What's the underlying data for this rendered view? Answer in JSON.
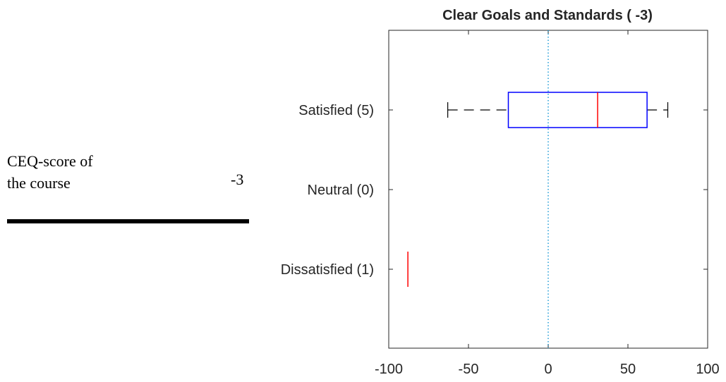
{
  "table": {
    "label_line1": "CEQ-score of",
    "label_line2": "the course",
    "value": "-3"
  },
  "chart_data": {
    "type": "boxplot",
    "title": "Clear Goals and Standards ( -3)",
    "xlim": [
      -100,
      100
    ],
    "xticks": [
      -100,
      -50,
      0,
      50,
      100
    ],
    "categories": [
      "Satisfied (5)",
      "Neutral (0)",
      "Dissatisfied (1)"
    ],
    "reference_line": {
      "x": 0,
      "style": "dotted",
      "color": "#1f9bd7"
    },
    "boxes": [
      {
        "category": "Satisfied (5)",
        "whisker_low": -63,
        "q1": -25,
        "median": 31,
        "q3": 62,
        "whisker_high": 75
      },
      {
        "category": "Neutral (0)"
      },
      {
        "category": "Dissatisfied (1)",
        "median": -88
      }
    ],
    "colors": {
      "box": "#0000ff",
      "median": "#ff0000",
      "whisker": "#000000",
      "axis": "#262626"
    },
    "grid": false
  }
}
